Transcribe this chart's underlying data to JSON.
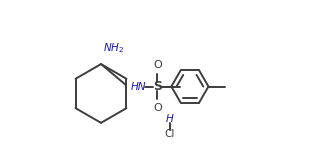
{
  "line_color": "#3d3d3d",
  "nh2_color": "#1a1aaa",
  "hn_color": "#1a1aaa",
  "h_color": "#1a1aaa",
  "background": "#ffffff",
  "lw": 1.4,
  "figsize": [
    3.35,
    1.56
  ],
  "dpi": 100,
  "xlim": [
    0.0,
    7.0
  ],
  "ylim": [
    -1.8,
    3.2
  ]
}
